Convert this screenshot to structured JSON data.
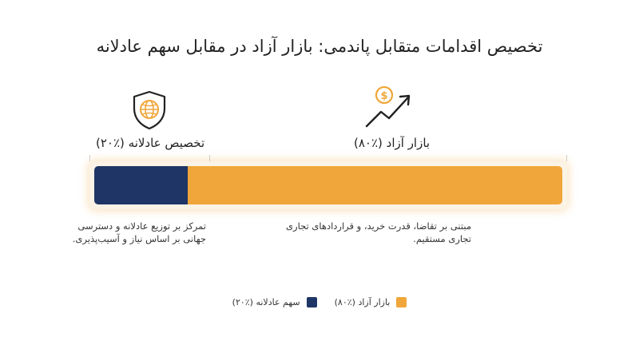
{
  "title": "تخصیص اقدامات متقابل پاندمی: بازار آزاد در مقابل سهم عادلانه",
  "colors": {
    "free_market": "#F0A63A",
    "fair_share": "#1E3566"
  },
  "icons": {
    "free_market": "dollar-growth-arrow-icon",
    "fair_share": "globe-shield-icon"
  },
  "chart_data": {
    "type": "bar",
    "orientation": "horizontal-stacked-100",
    "categories": [
      "بازار آزاد (٪۸۰)",
      "تخصیص عادلانه (٪۲۰)"
    ],
    "values": [
      80,
      20
    ],
    "unit": "%",
    "series": [
      {
        "name": "بازار آزاد (٪۸۰)",
        "value": 80,
        "label": "بازار آزاد (٪۸۰)",
        "description": [
          "مبتنی بر تقاضا، قدرت خرید، و قراردادهای تجاری",
          "تجاری مستقیم."
        ]
      },
      {
        "name": "سهم عادلانه (٪۲۰)",
        "value": 20,
        "label": "تخصیص عادلانه (٪۲۰)",
        "description": [
          "تمرکز بر توزیع عادلانه و دسترسی",
          "جهانی بر اساس نیاز و آسیب‌پذیری."
        ]
      }
    ],
    "legend_position": "bottom"
  }
}
